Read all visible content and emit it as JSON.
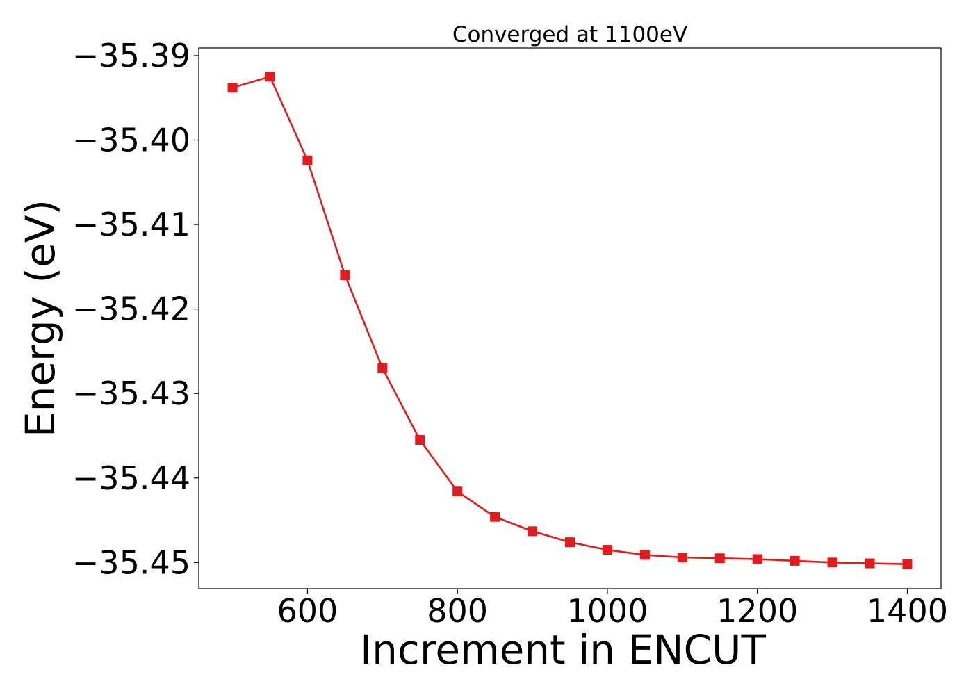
{
  "chart_data": {
    "type": "line",
    "title": "Converged at 1100eV",
    "xlabel": "Increment in ENCUT",
    "ylabel": "Energy (eV)",
    "xlim": [
      455,
      1445
    ],
    "ylim": [
      -35.4531,
      -35.3891
    ],
    "xticks": [
      600,
      800,
      1000,
      1200,
      1400
    ],
    "xtick_labels": [
      "600",
      "800",
      "1000",
      "1200",
      "1400"
    ],
    "yticks": [
      -35.39,
      -35.4,
      -35.41,
      -35.42,
      -35.43,
      -35.44,
      -35.45
    ],
    "ytick_labels": [
      "−35.39",
      "−35.40",
      "−35.41",
      "−35.42",
      "−35.43",
      "−35.44",
      "−35.45"
    ],
    "grid": false,
    "series": [
      {
        "color": "#e41a1c",
        "marker": "square",
        "x": [
          500,
          550,
          600,
          650,
          700,
          750,
          800,
          850,
          900,
          950,
          1000,
          1050,
          1100,
          1150,
          1200,
          1250,
          1300,
          1350,
          1400
        ],
        "y": [
          -35.3938,
          -35.3925,
          -35.4024,
          -35.416,
          -35.427,
          -35.4355,
          -35.4416,
          -35.4446,
          -35.4463,
          -35.4476,
          -35.4485,
          -35.4491,
          -35.4494,
          -35.4495,
          -35.4496,
          -35.4498,
          -35.45,
          -35.4501,
          -35.4502
        ]
      }
    ]
  }
}
